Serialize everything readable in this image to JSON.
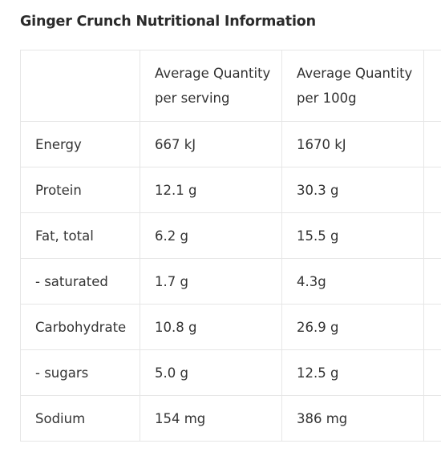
{
  "page": {
    "title": "Ginger Crunch Nutritional Information"
  },
  "table": {
    "headers": {
      "label": "",
      "serving_line1": "Average Quantity",
      "serving_line2": "per serving",
      "per100_line1": "Average Quantity",
      "per100_line2": "per 100g"
    },
    "rows": [
      {
        "label": "Energy",
        "serving": "667 kJ",
        "per100": "1670 kJ"
      },
      {
        "label": "Protein",
        "serving": "12.1 g",
        "per100": "30.3 g"
      },
      {
        "label": "Fat, total",
        "serving": "6.2 g",
        "per100": "15.5 g"
      },
      {
        "label": "- saturated",
        "serving": "1.7 g",
        "per100": "4.3g"
      },
      {
        "label": "Carbohydrate",
        "serving": "10.8 g",
        "per100": "26.9 g"
      },
      {
        "label": "- sugars",
        "serving": "5.0 g",
        "per100": "12.5 g"
      },
      {
        "label": "Sodium",
        "serving": "154 mg",
        "per100": "386 mg"
      }
    ]
  }
}
